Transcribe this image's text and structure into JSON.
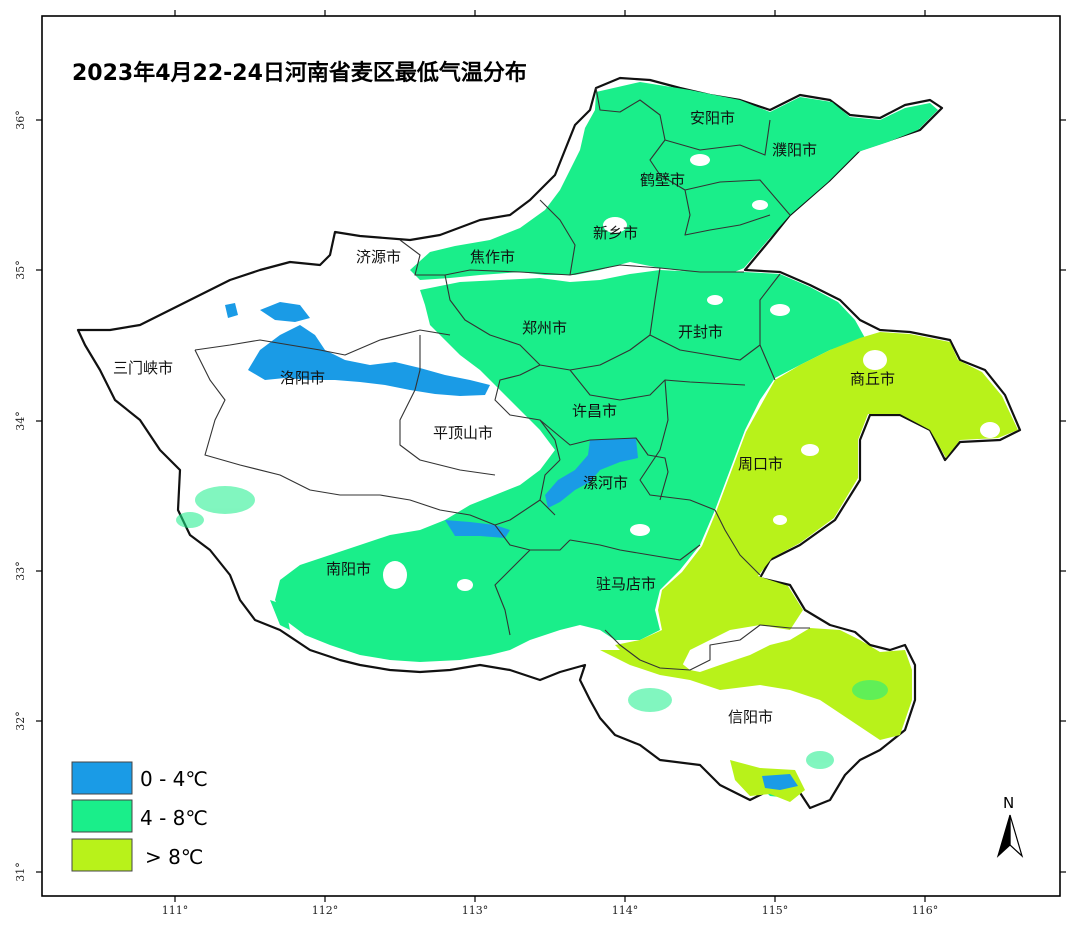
{
  "title": "2023年4月22-24日河南省麦区最低气温分布",
  "axes": {
    "x_ticks": [
      "111°",
      "112°",
      "113°",
      "114°",
      "115°",
      "116°"
    ],
    "y_ticks": [
      "36°",
      "35°",
      "34°",
      "33°",
      "32°",
      "31°"
    ]
  },
  "cities": [
    {
      "name": "安阳市"
    },
    {
      "name": "濮阳市"
    },
    {
      "name": "鹤壁市"
    },
    {
      "name": "新乡市"
    },
    {
      "name": "济源市"
    },
    {
      "name": "焦作市"
    },
    {
      "name": "郑州市"
    },
    {
      "name": "开封市"
    },
    {
      "name": "三门峡市"
    },
    {
      "name": "洛阳市"
    },
    {
      "name": "商丘市"
    },
    {
      "name": "许昌市"
    },
    {
      "name": "平顶山市"
    },
    {
      "name": "周口市"
    },
    {
      "name": "漯河市"
    },
    {
      "name": "南阳市"
    },
    {
      "name": "驻马店市"
    },
    {
      "name": "信阳市"
    }
  ],
  "legend": [
    {
      "label": "0 - 4℃",
      "color": "#1a9be6"
    },
    {
      "label": "4 - 8℃",
      "color": "#1aee8a"
    },
    {
      "label": "> 8℃",
      "color": "#b8f21a"
    }
  ],
  "north_arrow": {
    "label": "N"
  }
}
